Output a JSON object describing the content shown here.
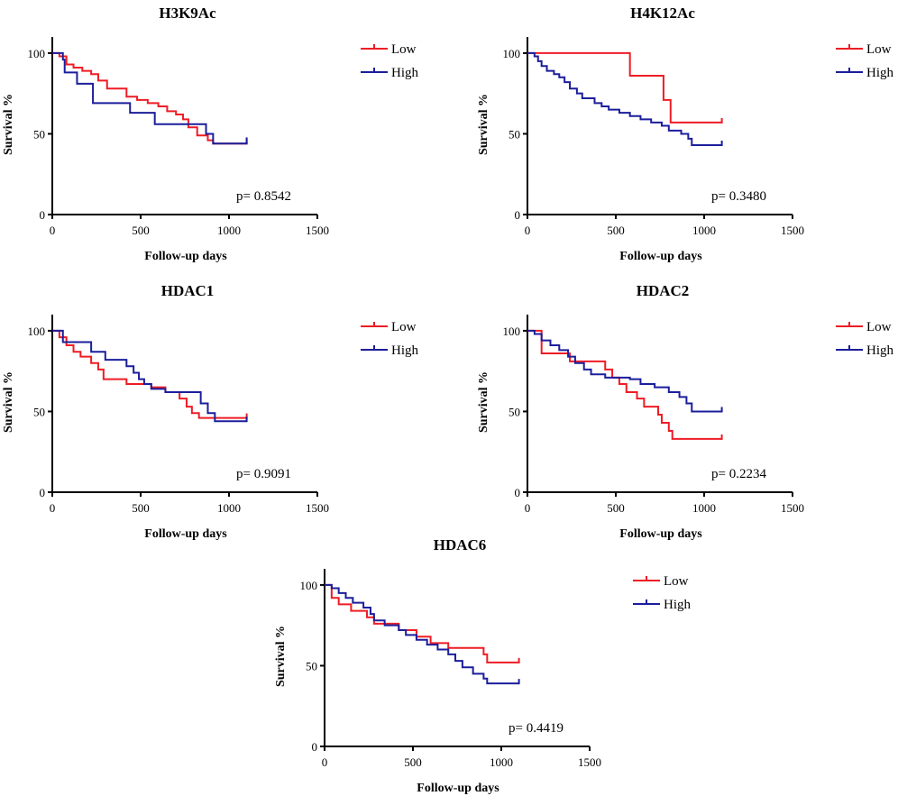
{
  "colors": {
    "low": "#ee1c25",
    "high": "#1b1e9b",
    "axis": "#000000"
  },
  "chart_data": [
    {
      "type": "line",
      "title": "H3K9Ac",
      "xlabel": "Follow-up days",
      "ylabel": "Survival %",
      "xlim": [
        0,
        1500
      ],
      "ylim": [
        0,
        110
      ],
      "xticks": [
        "0",
        "500",
        "1000",
        "1500"
      ],
      "yticks": [
        "0",
        "50",
        "100"
      ],
      "pvalue": "p= 0.8542",
      "legend": [
        "Low",
        "High"
      ],
      "series": [
        {
          "name": "Low",
          "steps": [
            [
              0,
              100
            ],
            [
              40,
              98
            ],
            [
              80,
              93
            ],
            [
              120,
              91
            ],
            [
              170,
              89
            ],
            [
              220,
              87
            ],
            [
              260,
              83
            ],
            [
              310,
              78
            ],
            [
              420,
              73
            ],
            [
              480,
              71
            ],
            [
              540,
              69
            ],
            [
              600,
              67
            ],
            [
              650,
              64
            ],
            [
              700,
              62
            ],
            [
              740,
              59
            ],
            [
              770,
              54
            ],
            [
              820,
              49
            ],
            [
              880,
              46
            ],
            [
              910,
              44
            ],
            [
              1100,
              44
            ]
          ]
        },
        {
          "name": "High",
          "steps": [
            [
              0,
              100
            ],
            [
              60,
              96
            ],
            [
              70,
              88
            ],
            [
              140,
              81
            ],
            [
              230,
              69
            ],
            [
              440,
              63
            ],
            [
              580,
              56
            ],
            [
              870,
              50
            ],
            [
              910,
              44
            ],
            [
              1100,
              45
            ]
          ]
        }
      ]
    },
    {
      "type": "line",
      "title": "H4K12Ac",
      "xlabel": "Follow-up days",
      "ylabel": "Survival %",
      "xlim": [
        0,
        1500
      ],
      "ylim": [
        0,
        110
      ],
      "xticks": [
        "0",
        "500",
        "1000",
        "1500"
      ],
      "yticks": [
        "0",
        "50",
        "100"
      ],
      "pvalue": "p= 0.3480",
      "legend": [
        "Low",
        "High"
      ],
      "series": [
        {
          "name": "Low",
          "steps": [
            [
              0,
              100
            ],
            [
              580,
              86
            ],
            [
              770,
              71
            ],
            [
              810,
              57
            ],
            [
              1100,
              57
            ]
          ]
        },
        {
          "name": "High",
          "steps": [
            [
              0,
              100
            ],
            [
              40,
              98
            ],
            [
              60,
              95
            ],
            [
              80,
              92
            ],
            [
              110,
              89
            ],
            [
              150,
              87
            ],
            [
              180,
              85
            ],
            [
              210,
              82
            ],
            [
              240,
              78
            ],
            [
              280,
              75
            ],
            [
              310,
              72
            ],
            [
              380,
              69
            ],
            [
              420,
              67
            ],
            [
              460,
              65
            ],
            [
              520,
              63
            ],
            [
              580,
              61
            ],
            [
              640,
              59
            ],
            [
              700,
              57
            ],
            [
              760,
              55
            ],
            [
              800,
              52
            ],
            [
              870,
              50
            ],
            [
              910,
              47
            ],
            [
              930,
              43
            ],
            [
              1100,
              43
            ]
          ]
        }
      ]
    },
    {
      "type": "line",
      "title": "HDAC1",
      "xlabel": "Follow-up days",
      "ylabel": "Survival %",
      "xlim": [
        0,
        1500
      ],
      "ylim": [
        0,
        110
      ],
      "xticks": [
        "0",
        "500",
        "1000",
        "1500"
      ],
      "yticks": [
        "0",
        "50",
        "100"
      ],
      "pvalue": "p= 0.9091",
      "legend": [
        "Low",
        "High"
      ],
      "series": [
        {
          "name": "Low",
          "steps": [
            [
              0,
              100
            ],
            [
              40,
              96
            ],
            [
              80,
              91
            ],
            [
              120,
              87
            ],
            [
              160,
              84
            ],
            [
              220,
              80
            ],
            [
              260,
              76
            ],
            [
              290,
              70
            ],
            [
              420,
              67
            ],
            [
              560,
              65
            ],
            [
              640,
              62
            ],
            [
              720,
              58
            ],
            [
              760,
              53
            ],
            [
              790,
              49
            ],
            [
              830,
              46
            ],
            [
              1100,
              46
            ]
          ]
        },
        {
          "name": "High",
          "steps": [
            [
              0,
              100
            ],
            [
              60,
              93
            ],
            [
              220,
              87
            ],
            [
              300,
              82
            ],
            [
              420,
              78
            ],
            [
              460,
              74
            ],
            [
              490,
              70
            ],
            [
              520,
              67
            ],
            [
              560,
              64
            ],
            [
              640,
              62
            ],
            [
              840,
              55
            ],
            [
              880,
              49
            ],
            [
              920,
              44
            ],
            [
              1100,
              44
            ]
          ]
        }
      ]
    },
    {
      "type": "line",
      "title": "HDAC2",
      "xlabel": "Follow-up days",
      "ylabel": "Survival %",
      "xlim": [
        0,
        1500
      ],
      "ylim": [
        0,
        110
      ],
      "xticks": [
        "0",
        "500",
        "1000",
        "1500"
      ],
      "yticks": [
        "0",
        "50",
        "100"
      ],
      "pvalue": "p= 0.2234",
      "legend": [
        "Low",
        "High"
      ],
      "series": [
        {
          "name": "Low",
          "steps": [
            [
              0,
              100
            ],
            [
              80,
              86
            ],
            [
              240,
              81
            ],
            [
              440,
              76
            ],
            [
              480,
              71
            ],
            [
              520,
              67
            ],
            [
              560,
              62
            ],
            [
              620,
              58
            ],
            [
              660,
              53
            ],
            [
              740,
              48
            ],
            [
              760,
              43
            ],
            [
              800,
              38
            ],
            [
              820,
              33
            ],
            [
              1100,
              33
            ]
          ]
        },
        {
          "name": "High",
          "steps": [
            [
              0,
              100
            ],
            [
              40,
              98
            ],
            [
              80,
              94
            ],
            [
              130,
              91
            ],
            [
              180,
              88
            ],
            [
              230,
              84
            ],
            [
              270,
              80
            ],
            [
              320,
              76
            ],
            [
              360,
              73
            ],
            [
              440,
              71
            ],
            [
              580,
              70
            ],
            [
              640,
              67
            ],
            [
              720,
              65
            ],
            [
              800,
              62
            ],
            [
              860,
              59
            ],
            [
              900,
              55
            ],
            [
              930,
              50
            ],
            [
              1100,
              50
            ]
          ]
        }
      ]
    },
    {
      "type": "line",
      "title": "HDAC6",
      "xlabel": "Follow-up days",
      "ylabel": "Survival %",
      "xlim": [
        0,
        1500
      ],
      "ylim": [
        0,
        110
      ],
      "xticks": [
        "0",
        "500",
        "1000",
        "1500"
      ],
      "yticks": [
        "0",
        "50",
        "100"
      ],
      "pvalue": "p= 0.4419",
      "legend": [
        "Low",
        "High"
      ],
      "series": [
        {
          "name": "Low",
          "steps": [
            [
              0,
              100
            ],
            [
              40,
              92
            ],
            [
              80,
              88
            ],
            [
              150,
              84
            ],
            [
              240,
              80
            ],
            [
              280,
              76
            ],
            [
              420,
              72
            ],
            [
              520,
              68
            ],
            [
              600,
              64
            ],
            [
              700,
              61
            ],
            [
              900,
              57
            ],
            [
              920,
              52
            ],
            [
              1100,
              52
            ]
          ]
        },
        {
          "name": "High",
          "steps": [
            [
              0,
              100
            ],
            [
              40,
              98
            ],
            [
              80,
              95
            ],
            [
              120,
              92
            ],
            [
              160,
              89
            ],
            [
              220,
              86
            ],
            [
              260,
              82
            ],
            [
              280,
              78
            ],
            [
              340,
              75
            ],
            [
              420,
              72
            ],
            [
              460,
              69
            ],
            [
              520,
              66
            ],
            [
              580,
              63
            ],
            [
              640,
              60
            ],
            [
              700,
              57
            ],
            [
              740,
              53
            ],
            [
              780,
              49
            ],
            [
              840,
              45
            ],
            [
              900,
              42
            ],
            [
              920,
              39
            ],
            [
              1100,
              39
            ]
          ]
        }
      ]
    }
  ]
}
